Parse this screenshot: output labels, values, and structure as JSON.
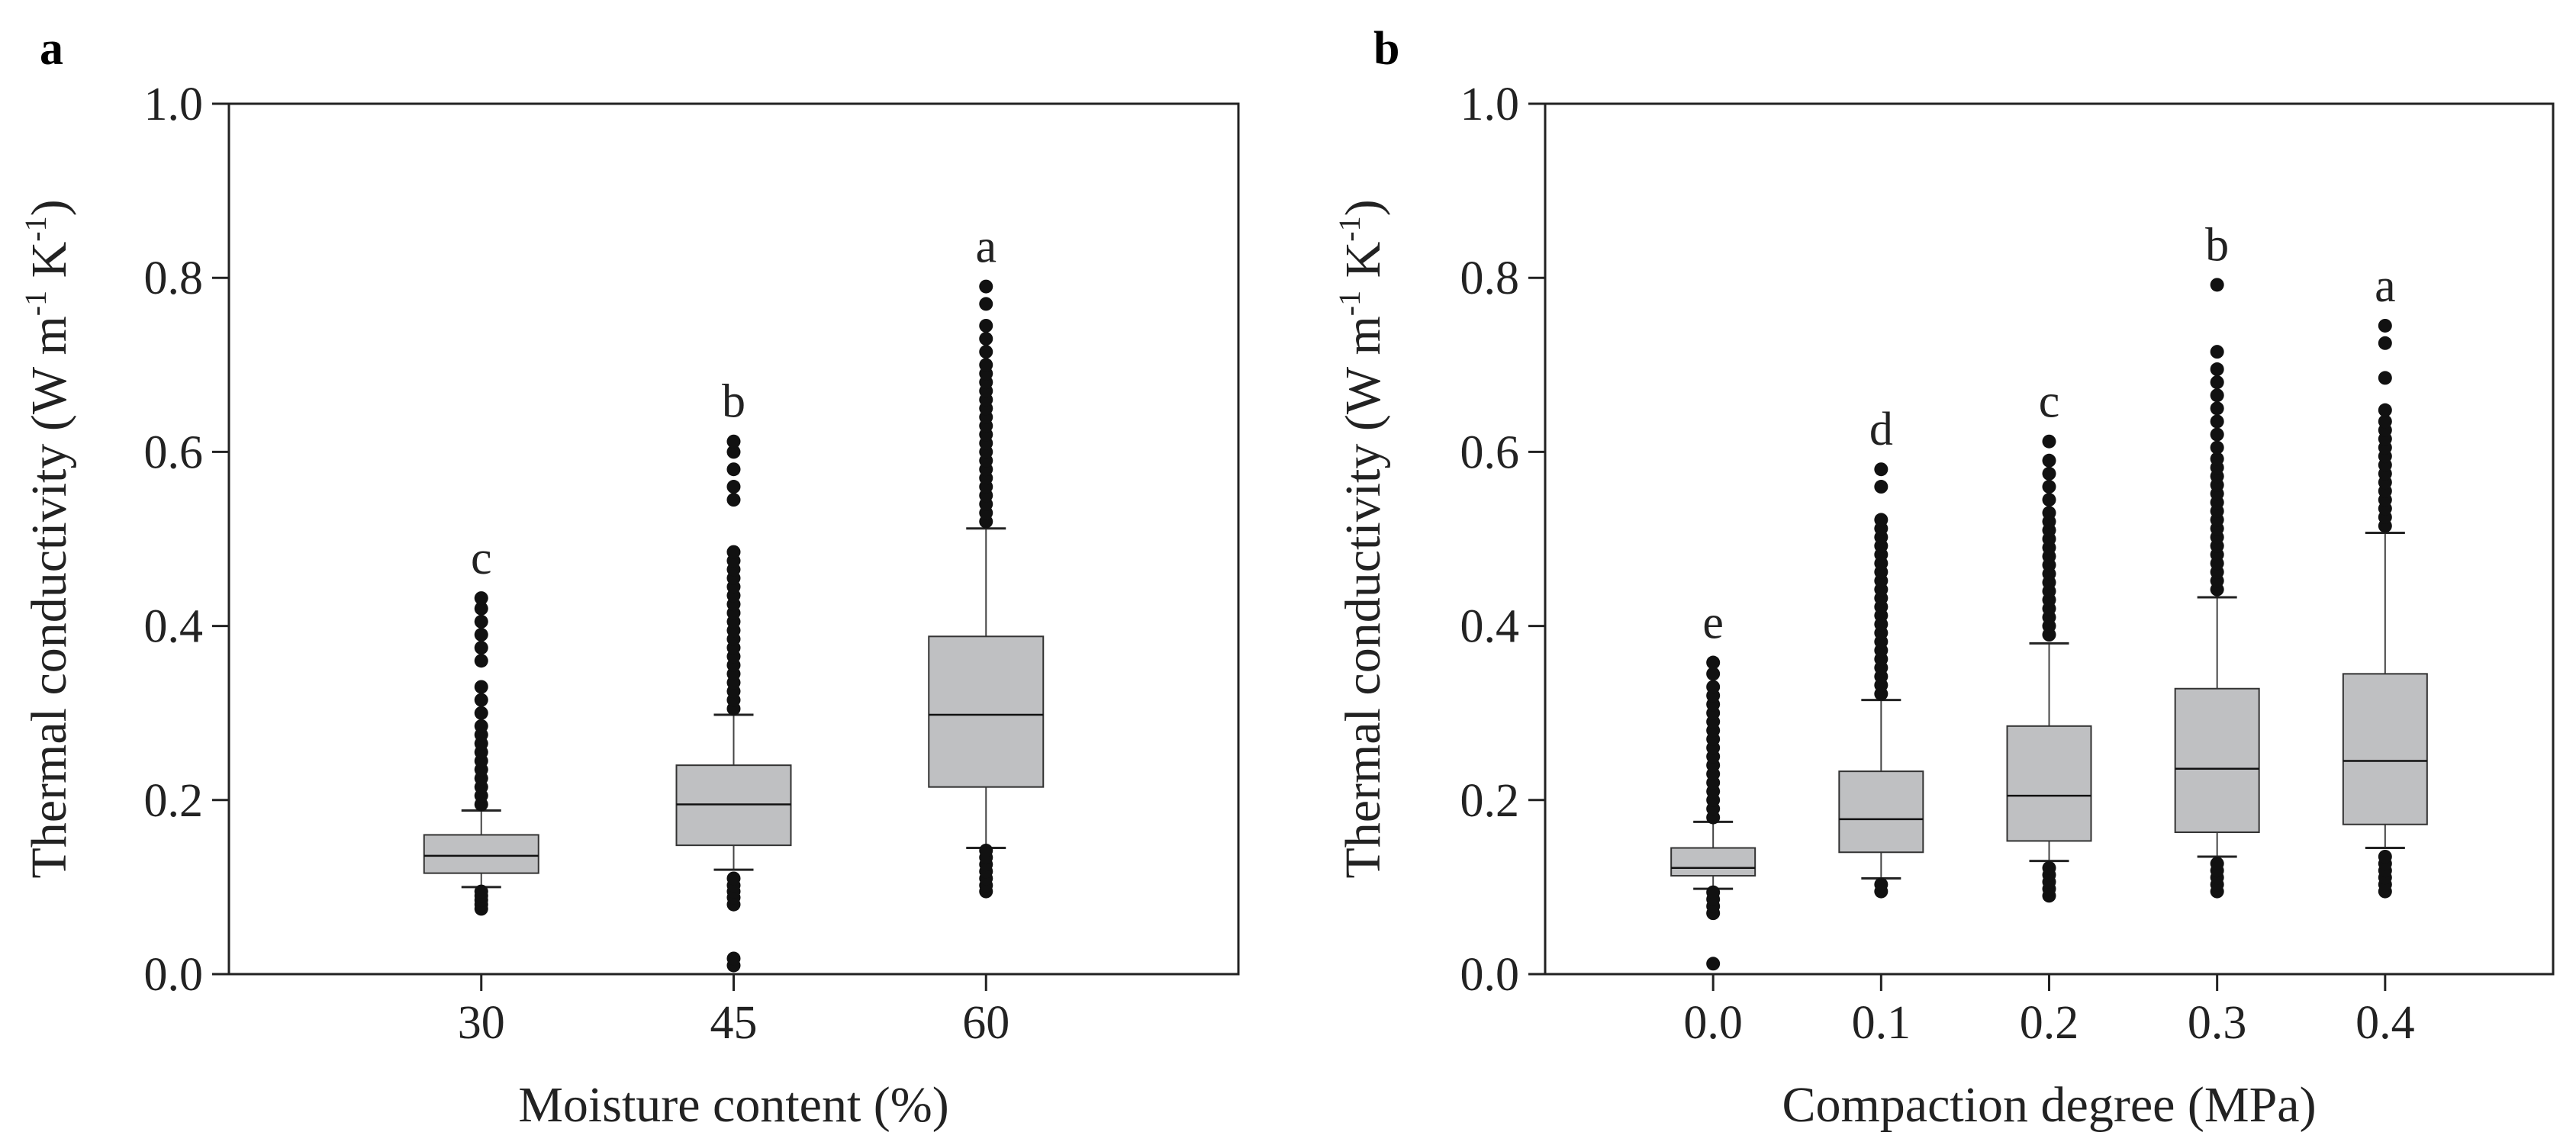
{
  "chart_data": [
    {
      "type": "box",
      "panel_label": "a",
      "xlabel": "Moisture content (%)",
      "ylabel_main": "Thermal conductivity (W m",
      "ylabel_sup1": "-1",
      "ylabel_mid": " K",
      "ylabel_sup2": "-1",
      "ylabel_end": ")",
      "ylim": [
        0.0,
        1.0
      ],
      "yticks": [
        "0.0",
        "0.2",
        "0.4",
        "0.6",
        "0.8",
        "1.0"
      ],
      "categories": [
        "30",
        "45",
        "60"
      ],
      "box_color": "#bfc0c2",
      "groups": [
        {
          "label": "30",
          "letter": "c",
          "q1": 0.116,
          "median": 0.136,
          "q3": 0.16,
          "whisker_low": 0.1,
          "whisker_high": 0.188,
          "outliers_low": [
            0.075,
            0.08,
            0.085,
            0.09,
            0.095
          ],
          "outliers_high": [
            0.195,
            0.205,
            0.215,
            0.225,
            0.235,
            0.245,
            0.255,
            0.265,
            0.275,
            0.285,
            0.3,
            0.315,
            0.33,
            0.36,
            0.375,
            0.39,
            0.405,
            0.42,
            0.432
          ]
        },
        {
          "label": "45",
          "letter": "b",
          "q1": 0.148,
          "median": 0.195,
          "q3": 0.24,
          "whisker_low": 0.12,
          "whisker_high": 0.298,
          "outliers_low": [
            0.01,
            0.018,
            0.08,
            0.088,
            0.095,
            0.102,
            0.11
          ],
          "outliers_high": [
            0.305,
            0.315,
            0.325,
            0.335,
            0.345,
            0.355,
            0.365,
            0.375,
            0.385,
            0.395,
            0.405,
            0.415,
            0.425,
            0.435,
            0.445,
            0.455,
            0.465,
            0.475,
            0.485,
            0.545,
            0.56,
            0.58,
            0.6,
            0.612
          ]
        },
        {
          "label": "60",
          "letter": "a",
          "q1": 0.215,
          "median": 0.298,
          "q3": 0.388,
          "whisker_low": 0.145,
          "whisker_high": 0.512,
          "outliers_low": [
            0.095,
            0.102,
            0.11,
            0.118,
            0.126,
            0.134,
            0.142
          ],
          "outliers_high": [
            0.52,
            0.53,
            0.54,
            0.55,
            0.56,
            0.57,
            0.58,
            0.59,
            0.6,
            0.61,
            0.62,
            0.63,
            0.64,
            0.65,
            0.66,
            0.67,
            0.68,
            0.69,
            0.7,
            0.715,
            0.73,
            0.745,
            0.77,
            0.79
          ]
        }
      ]
    },
    {
      "type": "box",
      "panel_label": "b",
      "xlabel": "Compaction degree (MPa)",
      "ylabel_main": "Thermal conductivity (W m",
      "ylabel_sup1": "-1",
      "ylabel_mid": " K",
      "ylabel_sup2": "-1",
      "ylabel_end": ")",
      "ylim": [
        0.0,
        1.0
      ],
      "yticks": [
        "0.0",
        "0.2",
        "0.4",
        "0.6",
        "0.8",
        "1.0"
      ],
      "categories": [
        "0.0",
        "0.1",
        "0.2",
        "0.3",
        "0.4"
      ],
      "box_color": "#bfc0c2",
      "groups": [
        {
          "label": "0.0",
          "letter": "e",
          "q1": 0.113,
          "median": 0.122,
          "q3": 0.145,
          "whisker_low": 0.098,
          "whisker_high": 0.175,
          "outliers_low": [
            0.012,
            0.07,
            0.078,
            0.086,
            0.094
          ],
          "outliers_high": [
            0.18,
            0.19,
            0.2,
            0.21,
            0.22,
            0.23,
            0.24,
            0.25,
            0.26,
            0.27,
            0.28,
            0.29,
            0.3,
            0.31,
            0.32,
            0.33,
            0.345,
            0.358
          ]
        },
        {
          "label": "0.1",
          "letter": "d",
          "q1": 0.14,
          "median": 0.178,
          "q3": 0.233,
          "whisker_low": 0.11,
          "whisker_high": 0.315,
          "outliers_low": [
            0.095,
            0.103
          ],
          "outliers_high": [
            0.322,
            0.332,
            0.342,
            0.352,
            0.362,
            0.372,
            0.382,
            0.392,
            0.402,
            0.412,
            0.422,
            0.432,
            0.442,
            0.452,
            0.462,
            0.472,
            0.482,
            0.492,
            0.502,
            0.512,
            0.522,
            0.56,
            0.58
          ]
        },
        {
          "label": "0.2",
          "letter": "c",
          "q1": 0.153,
          "median": 0.205,
          "q3": 0.285,
          "whisker_low": 0.13,
          "whisker_high": 0.38,
          "outliers_low": [
            0.09,
            0.098,
            0.106,
            0.114,
            0.122
          ],
          "outliers_high": [
            0.39,
            0.4,
            0.41,
            0.42,
            0.43,
            0.44,
            0.45,
            0.46,
            0.47,
            0.48,
            0.49,
            0.5,
            0.51,
            0.52,
            0.53,
            0.545,
            0.56,
            0.575,
            0.59,
            0.612
          ]
        },
        {
          "label": "0.3",
          "letter": "b",
          "q1": 0.163,
          "median": 0.236,
          "q3": 0.328,
          "whisker_low": 0.135,
          "whisker_high": 0.433,
          "outliers_low": [
            0.095,
            0.103,
            0.111,
            0.119,
            0.127
          ],
          "outliers_high": [
            0.442,
            0.452,
            0.462,
            0.472,
            0.482,
            0.492,
            0.502,
            0.512,
            0.522,
            0.532,
            0.542,
            0.552,
            0.562,
            0.572,
            0.582,
            0.592,
            0.605,
            0.62,
            0.635,
            0.65,
            0.665,
            0.68,
            0.695,
            0.715,
            0.792
          ]
        },
        {
          "label": "0.4",
          "letter": "a",
          "q1": 0.172,
          "median": 0.245,
          "q3": 0.345,
          "whisker_low": 0.145,
          "whisker_high": 0.507,
          "outliers_low": [
            0.095,
            0.103,
            0.111,
            0.119,
            0.127,
            0.135
          ],
          "outliers_high": [
            0.515,
            0.525,
            0.535,
            0.545,
            0.555,
            0.565,
            0.575,
            0.585,
            0.595,
            0.605,
            0.615,
            0.625,
            0.635,
            0.648,
            0.685,
            0.725,
            0.745
          ]
        }
      ]
    }
  ]
}
